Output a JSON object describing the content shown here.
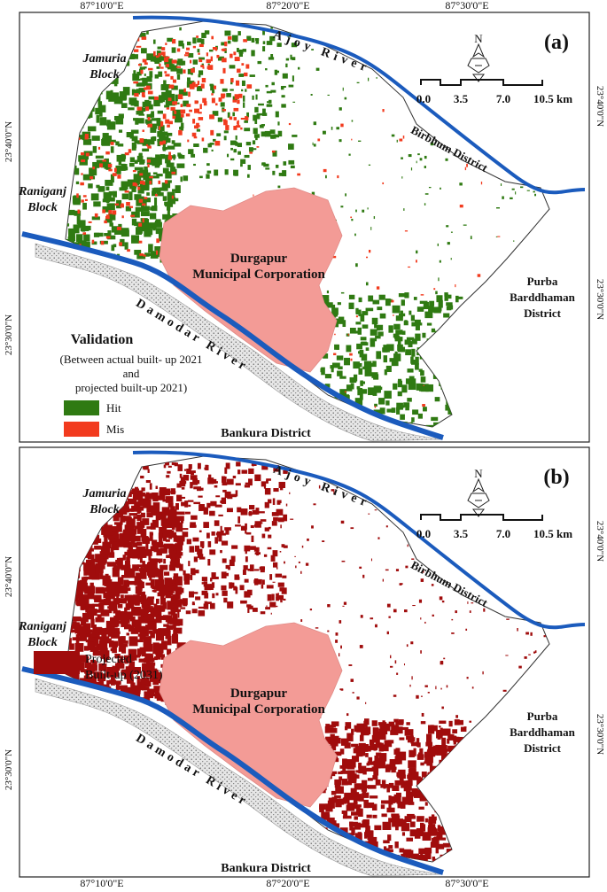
{
  "coordinates": {
    "top": [
      "87°10'0\"E",
      "87°20'0\"E",
      "87°30'0\"E"
    ],
    "bottom": [
      "87°10'0\"E",
      "87°20'0\"E",
      "87°30'0\"E"
    ],
    "left": [
      "23°40'0\"N",
      "23°30'0\"N"
    ],
    "right": [
      "23°40'0\"N",
      "23°30'0\"N"
    ]
  },
  "panels": [
    {
      "label": "(a)",
      "north": "N",
      "scale": [
        "0.0",
        "3.5",
        "7.0",
        "10.5 km"
      ],
      "places": {
        "jamuria": [
          "Jamuria",
          "Block"
        ],
        "raniganj": [
          "Raniganj",
          "Block"
        ],
        "ajoy": "Ajoy River",
        "birbhum": "Birbhum District",
        "durgapur": [
          "Durgapur",
          "Municipal Corporation"
        ],
        "purba": [
          "Purba",
          "Barddhaman",
          "District"
        ],
        "damodar": "Damodar River",
        "bankura": "Bankura District"
      },
      "legend": {
        "title": "Validation",
        "description": [
          "(Between actual built- up 2021",
          "and",
          "projected built-up 2021)"
        ],
        "items": [
          {
            "name": [
              "Hit"
            ],
            "color": "#2f7a12"
          },
          {
            "name": [
              "Mis"
            ],
            "color": "#f23b1e"
          }
        ]
      }
    },
    {
      "label": "(b)",
      "north": "N",
      "scale": [
        "0.0",
        "3.5",
        "7.0",
        "10.5 km"
      ],
      "places": {
        "jamuria": [
          "Jamuria",
          "Block"
        ],
        "raniganj": [
          "Raniganj",
          "Block"
        ],
        "ajoy": "Ajoy River",
        "birbhum": "Birbhum District",
        "durgapur": [
          "Durgapur",
          "Municipal Corporation"
        ],
        "purba": [
          "Purba",
          "Barddhaman",
          "District"
        ],
        "damodar": "Damodar River",
        "bankura": "Bankura District"
      },
      "legend": {
        "items": [
          {
            "name": [
              "Projected",
              "Built-up (2031)"
            ],
            "color": "#a00c0c"
          }
        ]
      }
    }
  ]
}
